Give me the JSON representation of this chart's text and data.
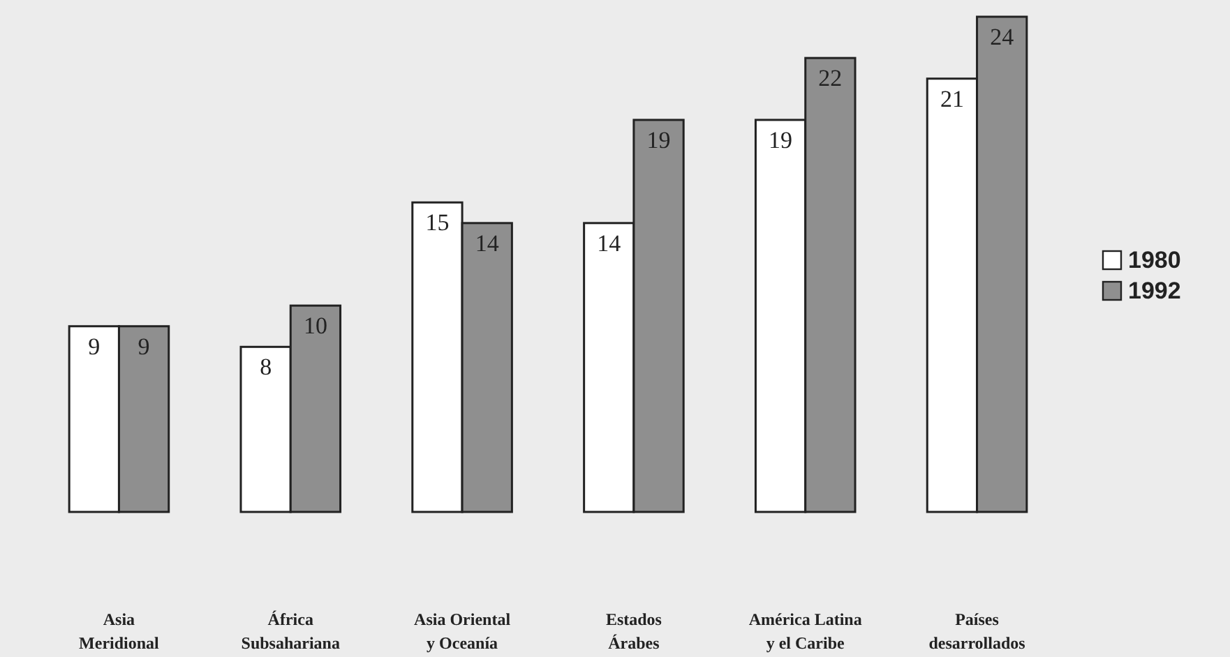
{
  "chart_data": {
    "type": "bar",
    "categories": [
      "Asia Meridional",
      "África Subsahariana",
      "Asia Oriental y Oceanía",
      "Estados Árabes",
      "América Latina y el Caribe",
      "Países desarrollados"
    ],
    "series": [
      {
        "name": "1980",
        "color": "#ffffff",
        "values": [
          9,
          8,
          15,
          14,
          19,
          21
        ]
      },
      {
        "name": "1992",
        "color": "#8f8f8f",
        "values": [
          9,
          10,
          14,
          19,
          22,
          24
        ]
      }
    ],
    "data_labels": true,
    "legend": "right"
  }
}
